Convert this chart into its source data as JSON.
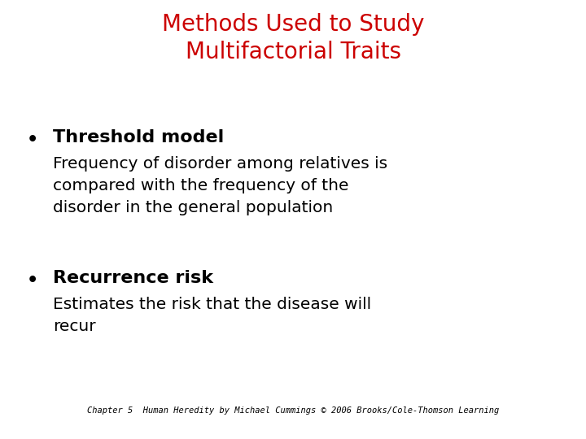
{
  "title_line1": "Methods Used to Study",
  "title_line2": "Multifactorial Traits",
  "title_color": "#cc0000",
  "title_fontsize": 20,
  "background_color": "#ffffff",
  "bullet1_header": "Threshold model",
  "bullet1_body": "Frequency of disorder among relatives is\ncompared with the frequency of the\ndisorder in the general population",
  "bullet2_header": "Recurrence risk",
  "bullet2_body": "Estimates the risk that the disease will\nrecur",
  "bullet_header_fontsize": 16,
  "bullet_body_fontsize": 14.5,
  "bullet_color": "#000000",
  "footer_text": "Chapter 5  Human Heredity by Michael Cummings © 2006 Brooks/Cole-Thomson Learning",
  "footer_fontsize": 7.5
}
